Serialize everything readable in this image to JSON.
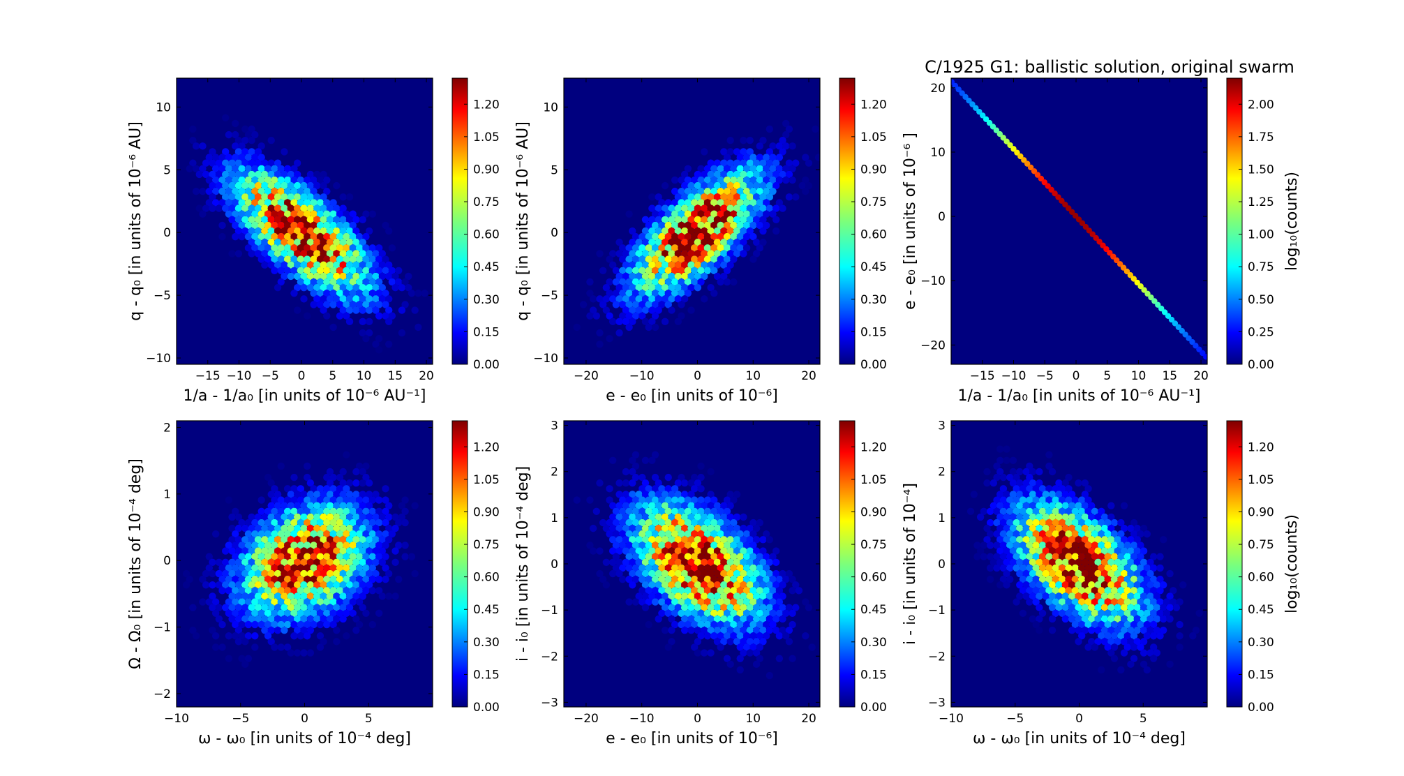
{
  "figure_title": "C/1925 G1:  ballistic solution, original swarm",
  "chart_data": [
    {
      "type": "heatmap",
      "xlabel": "1/a - 1/a₀ [in units of 10⁻⁶ AU⁻¹]",
      "ylabel": "q - q₀ [in units of 10⁻⁶ AU]",
      "xlim": [
        -20,
        21
      ],
      "ylim": [
        -10.5,
        12.3
      ],
      "xticks": [
        -15,
        -10,
        -5,
        0,
        5,
        10,
        15,
        20
      ],
      "yticks": [
        -10,
        -5,
        0,
        5,
        10
      ],
      "distribution": {
        "center": [
          0,
          0
        ],
        "sx": 7,
        "sy": 3.2,
        "rho": -0.72
      },
      "peak_log10_counts": 1.3,
      "colorbar": {
        "label": "",
        "ticks": [
          "0.00",
          "0.15",
          "0.30",
          "0.45",
          "0.60",
          "0.75",
          "0.90",
          "1.05",
          "1.20"
        ],
        "max": 1.32
      }
    },
    {
      "type": "heatmap",
      "xlabel": "e - e₀ [in units of 10⁻⁶]",
      "ylabel": "q - q₀ [in units of 10⁻⁶ AU]",
      "xlim": [
        -24,
        22
      ],
      "ylim": [
        -10.5,
        12.3
      ],
      "xticks": [
        -20,
        -10,
        0,
        10,
        20
      ],
      "yticks": [
        -10,
        -5,
        0,
        5,
        10
      ],
      "distribution": {
        "center": [
          0,
          0
        ],
        "sx": 7.5,
        "sy": 3.2,
        "rho": 0.72
      },
      "peak_log10_counts": 1.3,
      "colorbar": {
        "label": "",
        "ticks": [
          "0.00",
          "0.15",
          "0.30",
          "0.45",
          "0.60",
          "0.75",
          "0.90",
          "1.05",
          "1.20"
        ],
        "max": 1.32
      }
    },
    {
      "type": "heatmap",
      "xlabel": "1/a - 1/a₀ [in units of 10⁻⁶ AU⁻¹]",
      "ylabel": "e - e₀ [in units of 10⁻⁶ ]",
      "xlim": [
        -20,
        21
      ],
      "ylim": [
        -23,
        21.5
      ],
      "xticks": [
        -15,
        -10,
        -5,
        0,
        5,
        10,
        15,
        20
      ],
      "yticks": [
        -20,
        -10,
        0,
        10,
        20
      ],
      "distribution": {
        "line_slope": -1.05,
        "range": [
          -20,
          20
        ],
        "peak_log10_counts": 2.15,
        "sigma": 7
      },
      "colorbar": {
        "label": "log₁₀(counts)",
        "ticks": [
          "0.00",
          "0.25",
          "0.50",
          "0.75",
          "1.00",
          "1.25",
          "1.50",
          "1.75",
          "2.00"
        ],
        "max": 2.2
      }
    },
    {
      "type": "heatmap",
      "xlabel": "ω - ω₀ [in units of 10⁻⁴ deg]",
      "ylabel": "Ω - Ω₀ [in units of 10⁻⁴ deg]",
      "xlim": [
        -10,
        10
      ],
      "ylim": [
        -2.2,
        2.1
      ],
      "xticks": [
        -10,
        -5,
        0,
        5
      ],
      "yticks": [
        -2,
        -1,
        0,
        1,
        2
      ],
      "distribution": {
        "center": [
          0,
          0
        ],
        "sx": 3.2,
        "sy": 0.55,
        "rho": 0.3
      },
      "peak_log10_counts": 1.2,
      "colorbar": {
        "label": "",
        "ticks": [
          "0.00",
          "0.15",
          "0.30",
          "0.45",
          "0.60",
          "0.75",
          "0.90",
          "1.05",
          "1.20"
        ],
        "max": 1.32
      }
    },
    {
      "type": "heatmap",
      "xlabel": "e - e₀ [in units of 10⁻⁶]",
      "ylabel": "i - i₀ [in units of 10⁻⁴ deg]",
      "xlim": [
        -24,
        22
      ],
      "ylim": [
        -3.1,
        3.1
      ],
      "xticks": [
        -20,
        -10,
        0,
        10,
        20
      ],
      "yticks": [
        -3,
        -2,
        -1,
        0,
        1,
        2,
        3
      ],
      "distribution": {
        "center": [
          0,
          0
        ],
        "sx": 7.5,
        "sy": 0.85,
        "rho": -0.5
      },
      "peak_log10_counts": 1.3,
      "colorbar": {
        "label": "",
        "ticks": [
          "0.00",
          "0.15",
          "0.30",
          "0.45",
          "0.60",
          "0.75",
          "0.90",
          "1.05",
          "1.20"
        ],
        "max": 1.32
      }
    },
    {
      "type": "heatmap",
      "xlabel": "ω - ω₀ [in units of 10⁻⁴ deg]",
      "ylabel": "i - i₀ [in units of 10⁻⁴]",
      "xlim": [
        -10,
        10
      ],
      "ylim": [
        -3.1,
        3.1
      ],
      "xticks": [
        -10,
        -5,
        0,
        5
      ],
      "yticks": [
        -3,
        -2,
        -1,
        0,
        1,
        2,
        3
      ],
      "distribution": {
        "center": [
          0,
          0
        ],
        "sx": 3.2,
        "sy": 0.85,
        "rho": -0.55
      },
      "peak_log10_counts": 1.3,
      "colorbar": {
        "label": "log₁₀(counts)",
        "ticks": [
          "0.00",
          "0.15",
          "0.30",
          "0.45",
          "0.60",
          "0.75",
          "0.90",
          "1.05",
          "1.20"
        ],
        "max": 1.32
      }
    }
  ]
}
